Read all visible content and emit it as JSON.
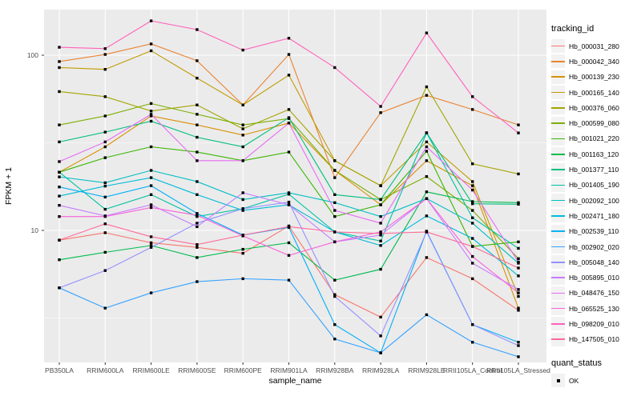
{
  "figure": {
    "y_axis_label": "FPKM + 1",
    "x_axis_label": "sample_name",
    "legend_tracking_title": "tracking_id",
    "legend_quant_title": "quant_status",
    "quant_ok_label": "OK",
    "panel_bg": "#EBEBEB",
    "grid_color": "#FFFFFF",
    "tick_text_color": "#4D4D4D",
    "marker_color": "#000000",
    "legend_key_bg": "#F2F2F2"
  },
  "chart_data": {
    "type": "line",
    "title": "",
    "xlabel": "sample_name",
    "ylabel": "FPKM + 1",
    "y_scale": "log10",
    "ylim": [
      1.77,
      182
    ],
    "y_major_ticks": [
      100,
      10
    ],
    "y_minor_ticks": [
      31.62,
      3.162
    ],
    "grid": true,
    "legend_position": "right",
    "marker": {
      "shape": "square",
      "color": "#000000",
      "label": "OK"
    },
    "categories": [
      "PB350LA",
      "RRIM600LA",
      "RRIM600LE",
      "RRIM600SE",
      "RRIM600PE",
      "RRIM901LA",
      "RRIM928BA",
      "RRIM928LA",
      "RRIM928LE",
      "RRII105LA_Control",
      "RRII105LA_Stressed"
    ],
    "series": [
      {
        "name": "Hb_000031_280",
        "color": "#F8766D",
        "values": [
          8.8,
          9.7,
          8.5,
          8.0,
          7.4,
          10.6,
          4.3,
          3.2,
          7.0,
          5.3,
          3.5
        ]
      },
      {
        "name": "Hb_000042_340",
        "color": "#EA8331",
        "values": [
          92,
          101,
          116,
          93,
          52,
          101,
          20,
          47,
          59,
          49,
          40
        ]
      },
      {
        "name": "Hb_000139_230",
        "color": "#D89000",
        "values": [
          21.5,
          30,
          45,
          40,
          35,
          41,
          22,
          14,
          25,
          18,
          3.6
        ]
      },
      {
        "name": "Hb_000165_140",
        "color": "#C09B00",
        "values": [
          85,
          83,
          106,
          74,
          52,
          77,
          25,
          18,
          32,
          19,
          4.2
        ]
      },
      {
        "name": "Hb_000376_060",
        "color": "#A3A500",
        "values": [
          62,
          58,
          48,
          52,
          38,
          49,
          25,
          18,
          66,
          24,
          21
        ]
      },
      {
        "name": "Hb_000599_080",
        "color": "#7CAE00",
        "values": [
          40,
          45,
          53,
          46,
          40,
          43.5,
          22,
          15,
          20.3,
          13,
          6.9
        ]
      },
      {
        "name": "Hb_001021_220",
        "color": "#39B600",
        "values": [
          21.5,
          26,
          30,
          28,
          25,
          28,
          12,
          14,
          28.3,
          8.1,
          8.6
        ]
      },
      {
        "name": "Hb_001163_120",
        "color": "#00BB4E",
        "values": [
          6.8,
          7.5,
          8.2,
          7.0,
          7.8,
          8.5,
          5.2,
          6.0,
          16.6,
          14.6,
          14.4
        ]
      },
      {
        "name": "Hb_001377_110",
        "color": "#00BF7D",
        "values": [
          32,
          36.4,
          42,
          34,
          30,
          44,
          16,
          15,
          36.1,
          14.2,
          14.1
        ]
      },
      {
        "name": "Hb_001405_190",
        "color": "#00C1A3",
        "values": [
          21.5,
          13.2,
          16,
          12,
          13.3,
          16.1,
          9.8,
          8.7,
          36,
          11.8,
          7.9
        ]
      },
      {
        "name": "Hb_002092_100",
        "color": "#00BFC4",
        "values": [
          20.2,
          18.7,
          22,
          19,
          15,
          16.4,
          14.4,
          12,
          15.2,
          11,
          6.5
        ]
      },
      {
        "name": "Hb_002471_180",
        "color": "#00BBDA",
        "values": [
          15.7,
          17.9,
          20,
          16,
          13,
          14,
          9.8,
          8.2,
          12.1,
          9.0,
          5.5
        ]
      },
      {
        "name": "Hb_002539_110",
        "color": "#00B0F6",
        "values": [
          17.7,
          15.5,
          18,
          12.5,
          9.4,
          10.4,
          2.9,
          2.0,
          9.9,
          2.9,
          2.3
        ]
      },
      {
        "name": "Hb_002902_020",
        "color": "#35A2FF",
        "values": [
          4.7,
          3.6,
          4.4,
          5.1,
          5.3,
          5.2,
          2.4,
          2.0,
          3.3,
          2.3,
          1.9
        ]
      },
      {
        "name": "Hb_005048_140",
        "color": "#9590FF",
        "values": [
          4.7,
          5.9,
          8.0,
          11.0,
          13.3,
          14.5,
          4.2,
          2.5,
          9.8,
          2.9,
          2.2
        ]
      },
      {
        "name": "Hb_005895_010",
        "color": "#C77CFF",
        "values": [
          13.9,
          12.1,
          14.0,
          10.5,
          16.4,
          14.0,
          8.6,
          9.4,
          15.2,
          6.5,
          4.6
        ]
      },
      {
        "name": "Hb_048476_150",
        "color": "#E76BF3",
        "values": [
          24.7,
          32,
          46,
          25,
          25,
          41,
          13,
          11,
          30,
          17,
          6.6
        ]
      },
      {
        "name": "Hb_065525_130",
        "color": "#FA62DB",
        "values": [
          12.0,
          12.0,
          13.5,
          12.2,
          9.3,
          7.2,
          8.6,
          9.8,
          15.2,
          7.1,
          4.4
        ]
      },
      {
        "name": "Hb_098209_010",
        "color": "#FF62BC",
        "values": [
          111,
          109,
          157,
          140,
          107,
          125,
          85,
          51,
          134,
          58,
          36
        ]
      },
      {
        "name": "Hb_147505_010",
        "color": "#FF6A98",
        "values": [
          8.8,
          10.9,
          9.2,
          8.3,
          9.4,
          10.5,
          9.8,
          9.6,
          9.8,
          8.1,
          6.1
        ]
      }
    ]
  }
}
